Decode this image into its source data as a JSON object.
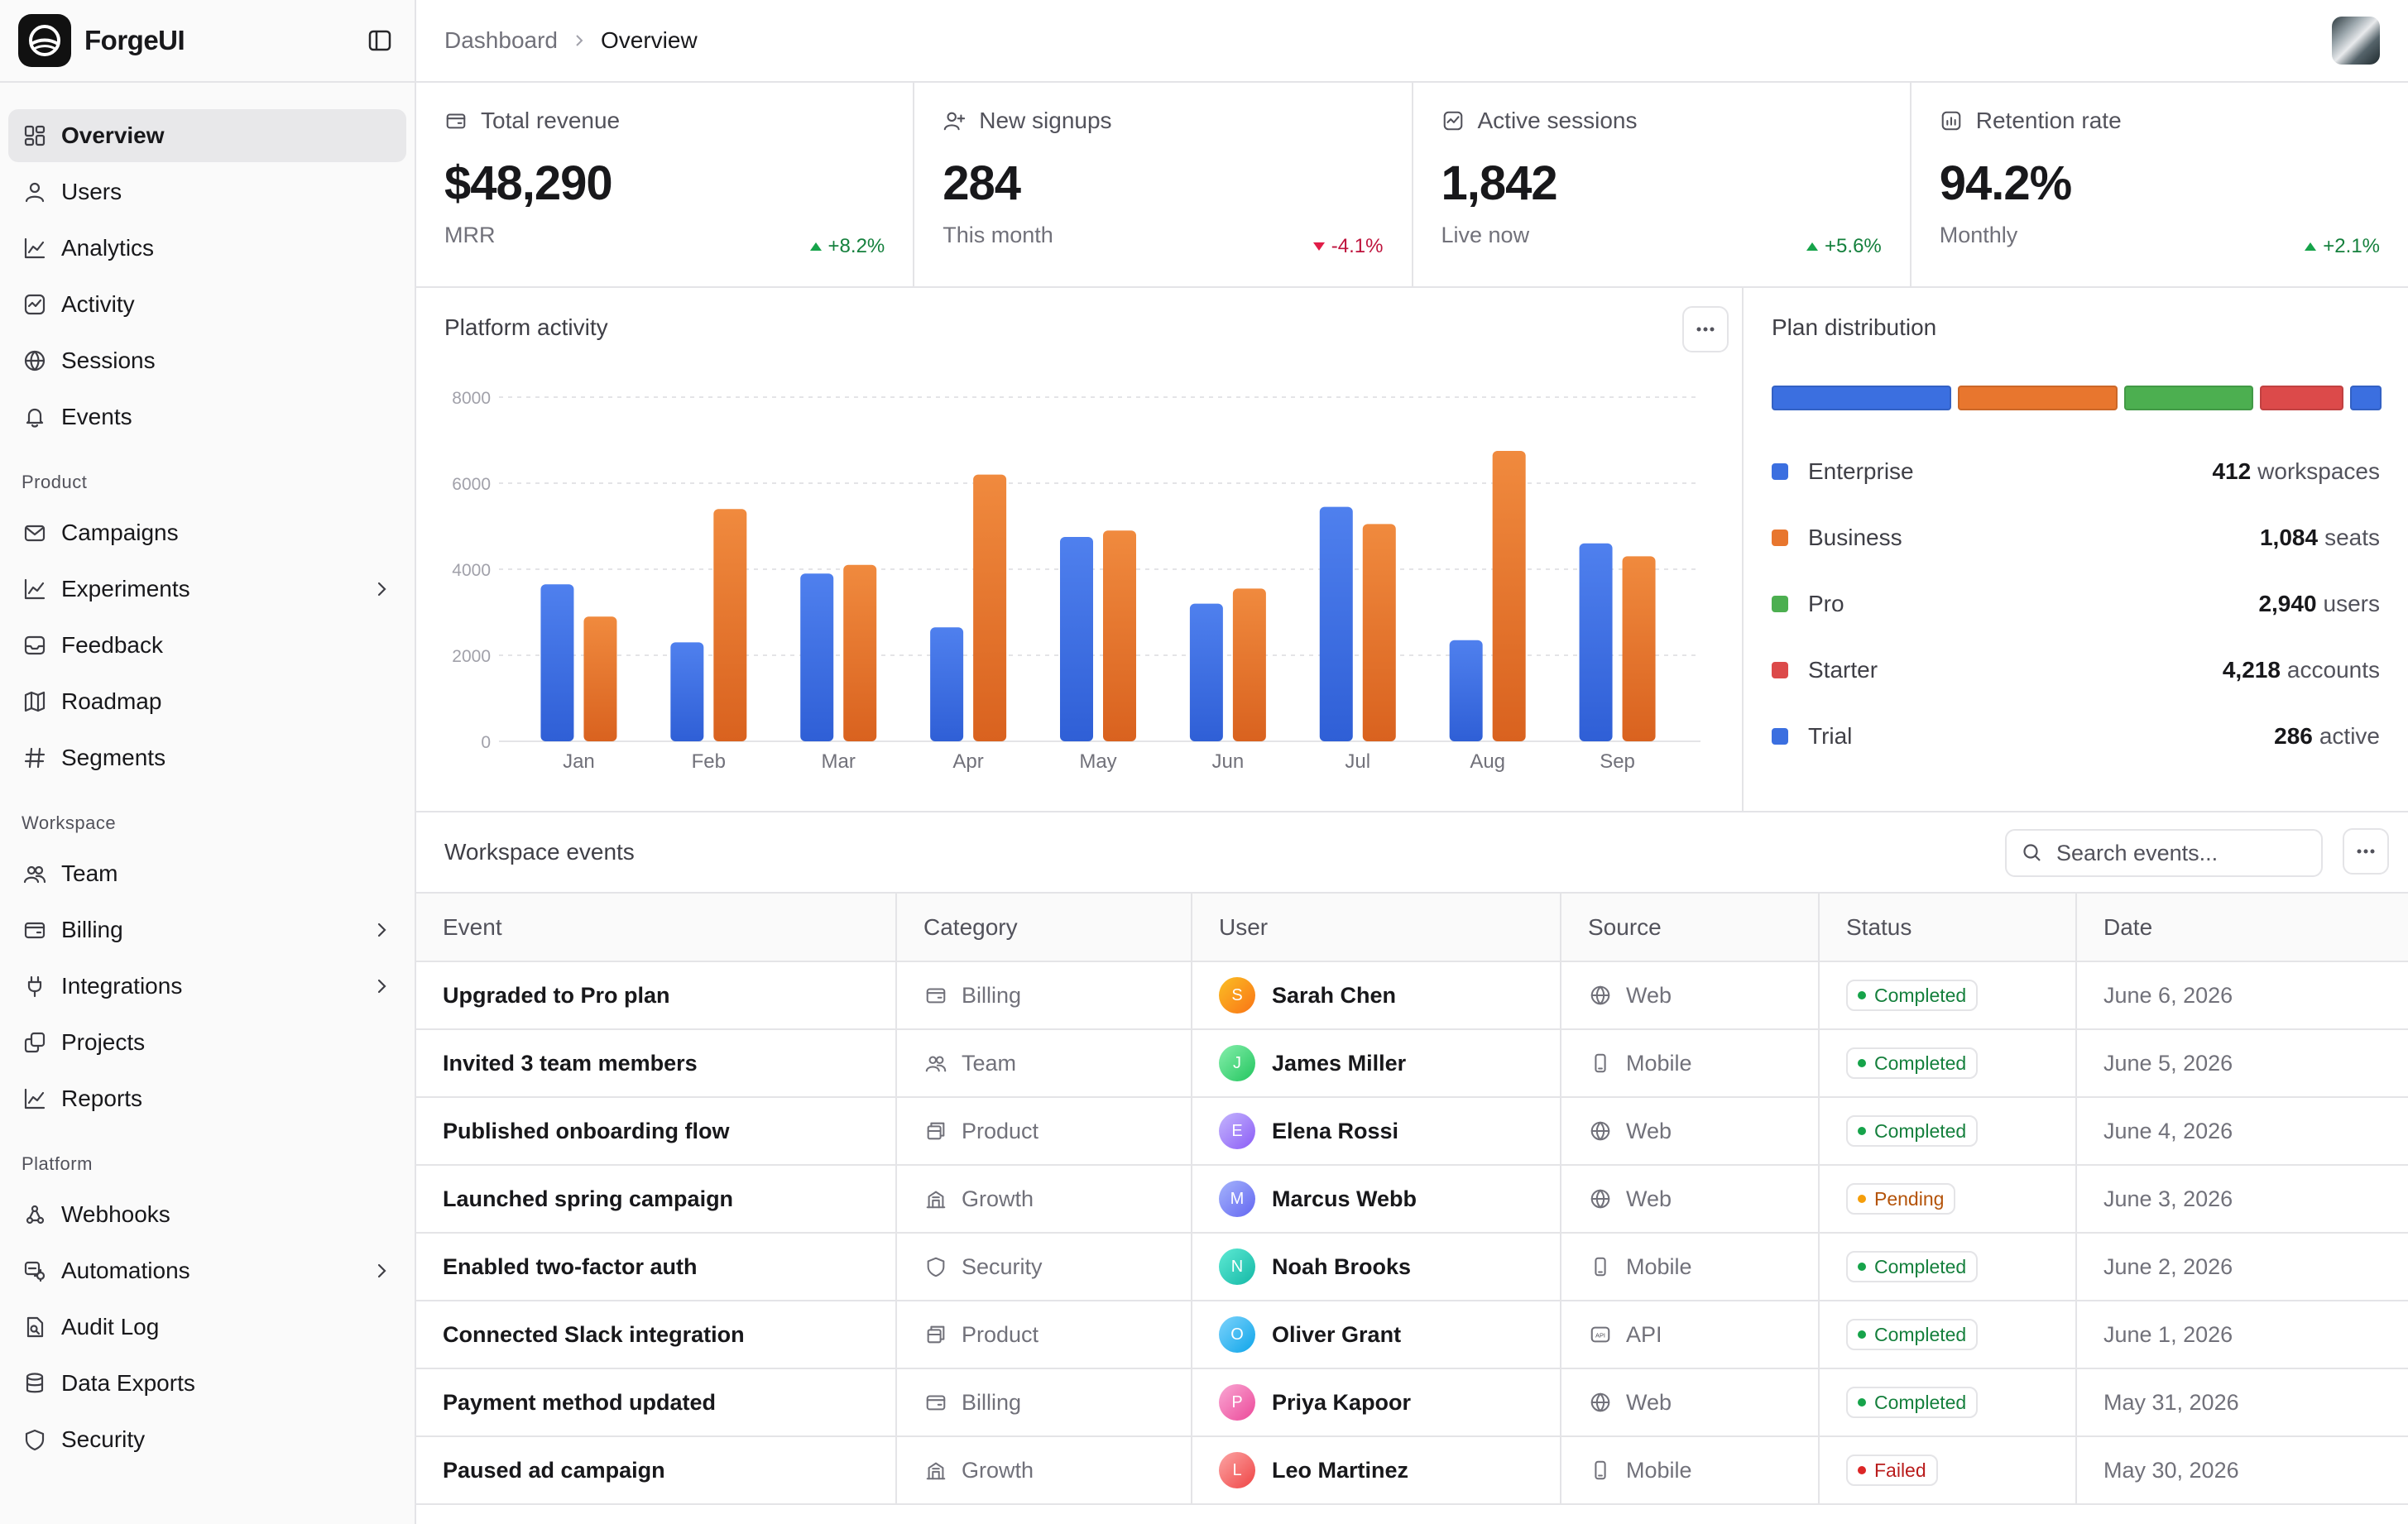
{
  "app": {
    "name": "ForgeUI"
  },
  "breadcrumb": {
    "parent": "Dashboard",
    "current": "Overview"
  },
  "sidebar": {
    "main": [
      {
        "label": "Overview",
        "icon": "grid-icon",
        "active": true
      },
      {
        "label": "Users",
        "icon": "user-icon"
      },
      {
        "label": "Analytics",
        "icon": "line-chart-icon"
      },
      {
        "label": "Activity",
        "icon": "activity-icon"
      },
      {
        "label": "Sessions",
        "icon": "globe-icon"
      },
      {
        "label": "Events",
        "icon": "bell-icon"
      }
    ],
    "sections": [
      {
        "label": "Product",
        "items": [
          {
            "label": "Campaigns",
            "icon": "mail-icon"
          },
          {
            "label": "Experiments",
            "icon": "line-chart-icon",
            "chevron": true
          },
          {
            "label": "Feedback",
            "icon": "inbox-icon"
          },
          {
            "label": "Roadmap",
            "icon": "map-icon"
          },
          {
            "label": "Segments",
            "icon": "hash-icon"
          }
        ]
      },
      {
        "label": "Workspace",
        "items": [
          {
            "label": "Team",
            "icon": "users-icon"
          },
          {
            "label": "Billing",
            "icon": "wallet-icon",
            "chevron": true
          },
          {
            "label": "Integrations",
            "icon": "plug-icon",
            "chevron": true
          },
          {
            "label": "Projects",
            "icon": "copy-icon"
          },
          {
            "label": "Reports",
            "icon": "line-chart-icon"
          }
        ]
      },
      {
        "label": "Platform",
        "items": [
          {
            "label": "Webhooks",
            "icon": "webhook-icon"
          },
          {
            "label": "Automations",
            "icon": "automation-icon",
            "chevron": true
          },
          {
            "label": "Audit Log",
            "icon": "file-search-icon"
          },
          {
            "label": "Data Exports",
            "icon": "database-icon"
          },
          {
            "label": "Security",
            "icon": "shield-icon"
          }
        ]
      }
    ]
  },
  "kpis": [
    {
      "label": "Total revenue",
      "icon": "wallet-icon",
      "value": "$48,290",
      "sub": "MRR",
      "delta": "+8.2%",
      "trend": "up"
    },
    {
      "label": "New signups",
      "icon": "user-plus-icon",
      "value": "284",
      "sub": "This month",
      "delta": "-4.1%",
      "trend": "down"
    },
    {
      "label": "Active sessions",
      "icon": "activity-icon",
      "value": "1,842",
      "sub": "Live now",
      "delta": "+5.6%",
      "trend": "up"
    },
    {
      "label": "Retention rate",
      "icon": "chart-box-icon",
      "value": "94.2%",
      "sub": "Monthly",
      "delta": "+2.1%",
      "trend": "up"
    }
  ],
  "chart_panel": {
    "title": "Platform activity"
  },
  "chart_data": {
    "type": "bar",
    "title": "",
    "categories": [
      "Jan",
      "Feb",
      "Mar",
      "Apr",
      "May",
      "Jun",
      "Jul",
      "Aug",
      "Sep"
    ],
    "series": [
      {
        "values": [
          3650,
          2300,
          3900,
          2650,
          4750,
          3200,
          5450,
          2350,
          4600
        ],
        "color": "#3b6fe0"
      },
      {
        "values": [
          2900,
          5400,
          4100,
          6200,
          4900,
          3550,
          5050,
          6750,
          4300
        ],
        "color": "#e8762e"
      }
    ],
    "ylim": [
      0,
      8000
    ],
    "yticks": [
      0,
      2000,
      4000,
      6000,
      8000
    ],
    "grid": true,
    "legend": "none"
  },
  "plan": {
    "title": "Plan distribution",
    "items": [
      {
        "name": "Enterprise",
        "num": "412",
        "unit": "workspaces",
        "color": "#3b6fe0",
        "share": 0.285
      },
      {
        "name": "Business",
        "num": "1,084",
        "unit": "seats",
        "color": "#e8762e",
        "share": 0.253
      },
      {
        "name": "Pro",
        "num": "2,940",
        "unit": "users",
        "color": "#4caf50",
        "share": 0.203
      },
      {
        "name": "Starter",
        "num": "4,218",
        "unit": "accounts",
        "color": "#dc4a4a",
        "share": 0.13
      },
      {
        "name": "Trial",
        "num": "286",
        "unit": "active",
        "color": "#3b6fe0",
        "share": 0.045
      }
    ]
  },
  "events": {
    "title": "Workspace events",
    "search_placeholder": "Search events...",
    "columns": [
      "Event",
      "Category",
      "User",
      "Source",
      "Status",
      "Date"
    ],
    "rows": [
      {
        "event": "Upgraded to Pro plan",
        "category": "Billing",
        "cat_icon": "wallet-icon",
        "user": "Sarah Chen",
        "initial": "S",
        "av": [
          "#fbbf24",
          "#f97316"
        ],
        "source": "Web",
        "src_icon": "globe-icon",
        "status": "Completed",
        "date": "June 6, 2026"
      },
      {
        "event": "Invited 3 team members",
        "category": "Team",
        "cat_icon": "users-icon",
        "user": "James Miller",
        "initial": "J",
        "av": [
          "#86efac",
          "#22c55e"
        ],
        "source": "Mobile",
        "src_icon": "phone-icon",
        "status": "Completed",
        "date": "June 5, 2026"
      },
      {
        "event": "Published onboarding flow",
        "category": "Product",
        "cat_icon": "box-icon",
        "user": "Elena Rossi",
        "initial": "E",
        "av": [
          "#c4b5fd",
          "#8b5cf6"
        ],
        "source": "Web",
        "src_icon": "globe-icon",
        "status": "Completed",
        "date": "June 4, 2026"
      },
      {
        "event": "Launched spring campaign",
        "category": "Growth",
        "cat_icon": "building-icon",
        "user": "Marcus Webb",
        "initial": "M",
        "av": [
          "#a5b4fc",
          "#6366f1"
        ],
        "source": "Web",
        "src_icon": "globe-icon",
        "status": "Pending",
        "date": "June 3, 2026"
      },
      {
        "event": "Enabled two-factor auth",
        "category": "Security",
        "cat_icon": "shield-icon",
        "user": "Noah Brooks",
        "initial": "N",
        "av": [
          "#5eead4",
          "#14b8a6"
        ],
        "source": "Mobile",
        "src_icon": "phone-icon",
        "status": "Completed",
        "date": "June 2, 2026"
      },
      {
        "event": "Connected Slack integration",
        "category": "Product",
        "cat_icon": "box-icon",
        "user": "Oliver Grant",
        "initial": "O",
        "av": [
          "#7dd3fc",
          "#0ea5e9"
        ],
        "source": "API",
        "src_icon": "api-icon",
        "status": "Completed",
        "date": "June 1, 2026"
      },
      {
        "event": "Payment method updated",
        "category": "Billing",
        "cat_icon": "wallet-icon",
        "user": "Priya Kapoor",
        "initial": "P",
        "av": [
          "#f9a8d4",
          "#ec4899"
        ],
        "source": "Web",
        "src_icon": "globe-icon",
        "status": "Completed",
        "date": "May 31, 2026"
      },
      {
        "event": "Paused ad campaign",
        "category": "Growth",
        "cat_icon": "building-icon",
        "user": "Leo Martinez",
        "initial": "L",
        "av": [
          "#fca5a5",
          "#ef4444"
        ],
        "source": "Mobile",
        "src_icon": "phone-icon",
        "status": "Failed",
        "date": "May 30, 2026"
      }
    ]
  },
  "status_colors": {
    "Completed": "#16a34a",
    "Pending": "#f59e0b",
    "Failed": "#dc2626"
  },
  "status_text_colors": {
    "Completed": "#15803d",
    "Pending": "#b45309",
    "Failed": "#b91c1c"
  }
}
